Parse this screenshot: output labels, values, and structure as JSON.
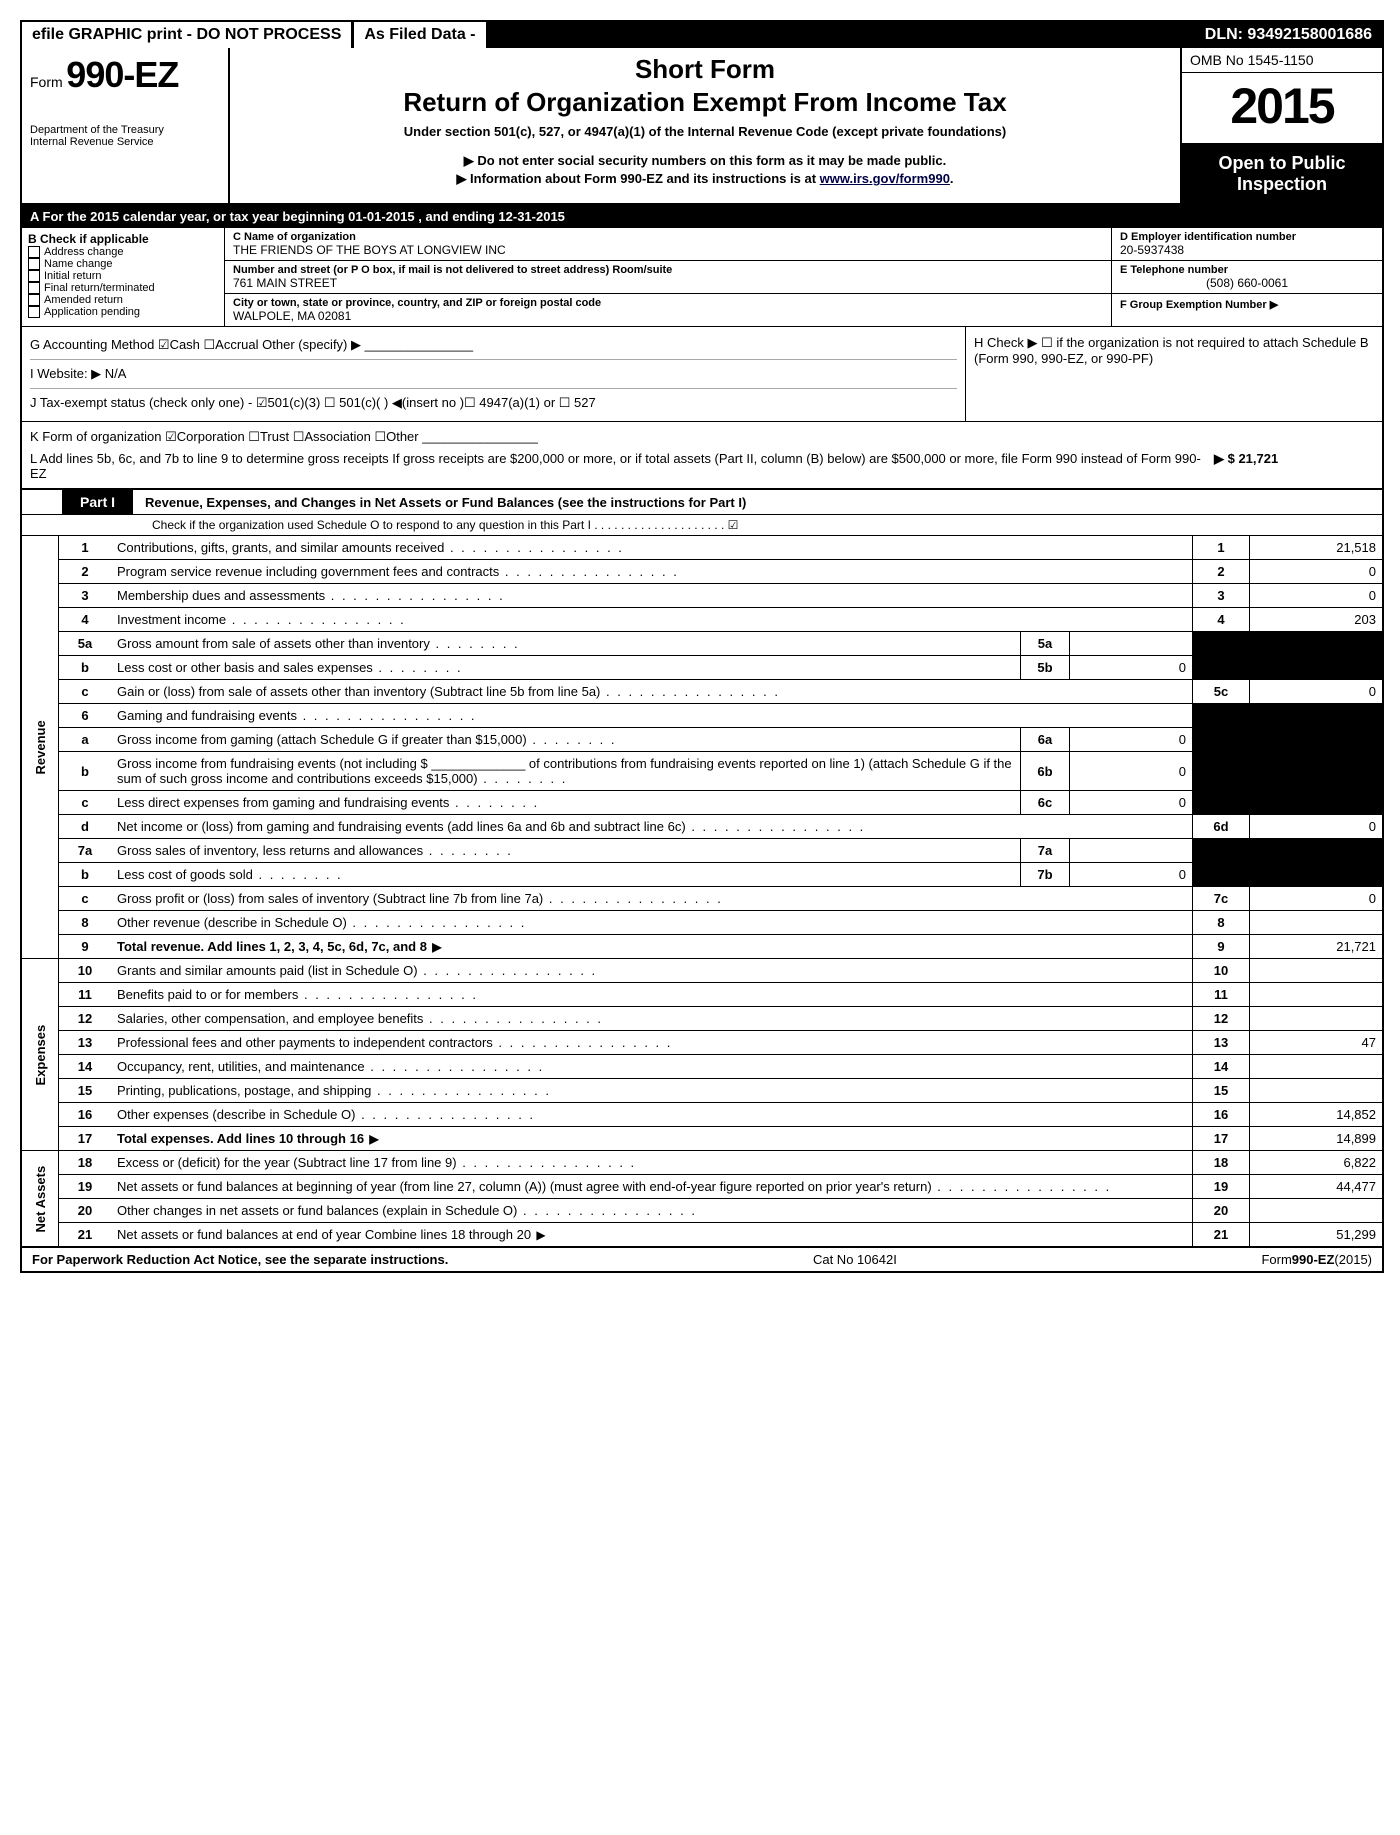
{
  "topbar": {
    "left": "efile GRAPHIC print - DO NOT PROCESS",
    "mid": "As Filed Data -",
    "right": "DLN: 93492158001686"
  },
  "header": {
    "form_prefix": "Form",
    "form_number": "990-EZ",
    "dept1": "Department of the Treasury",
    "dept2": "Internal Revenue Service",
    "short_form": "Short Form",
    "main_title": "Return of Organization Exempt From Income Tax",
    "subtitle": "Under section 501(c), 527, or 4947(a)(1) of the Internal Revenue Code (except private foundations)",
    "inst1": "▶ Do not enter social security numbers on this form as it may be made public.",
    "inst2_pre": "▶ Information about Form 990-EZ and its instructions is at ",
    "inst2_link": "www.irs.gov/form990",
    "omb": "OMB No 1545-1150",
    "year": "2015",
    "open1": "Open to Public",
    "open2": "Inspection"
  },
  "sectionA": "A  For the 2015 calendar year, or tax year beginning 01-01-2015              , and ending 12-31-2015",
  "sectionB": {
    "title": "B  Check if applicable",
    "items": [
      "Address change",
      "Name change",
      "Initial return",
      "Final return/terminated",
      "Amended return",
      "Application pending"
    ]
  },
  "sectionC": {
    "name_label": "C Name of organization",
    "name": "THE FRIENDS OF THE BOYS AT LONGVIEW INC",
    "street_label": "Number and street (or P  O  box, if mail is not delivered to street address) Room/suite",
    "street": "761 MAIN STREET",
    "city_label": "City or town, state or province, country, and ZIP or foreign postal code",
    "city": "WALPOLE, MA  02081"
  },
  "sectionD": {
    "label": "D Employer identification number",
    "value": "20-5937438"
  },
  "sectionE": {
    "label": "E Telephone number",
    "value": "(508) 660-0061"
  },
  "sectionF": {
    "label": "F Group Exemption Number  ▶",
    "value": ""
  },
  "lineG": "G Accounting Method   ☑Cash  ☐Accrual   Other (specify) ▶ _______________",
  "lineI": "I Website: ▶  N/A",
  "lineJ": "J Tax-exempt status (check only one) - ☑501(c)(3)   ☐ 501(c)( )  ◀(insert no )☐ 4947(a)(1) or ☐ 527",
  "lineH": "H   Check ▶ ☐ if the organization is not required to attach Schedule B (Form 990, 990-EZ, or 990-PF)",
  "lineK": "K Form of organization   ☑Corporation  ☐Trust  ☐Association  ☐Other ________________",
  "lineL": "L Add lines 5b, 6c, and 7b to line 9 to determine gross receipts  If gross receipts are $200,000 or more, or if total assets (Part II, column (B) below) are $500,000 or more, file Form 990 instead of Form 990-EZ",
  "lineL_val": "▶ $ 21,721",
  "partI": {
    "label": "Part I",
    "title": "Revenue, Expenses, and Changes in Net Assets or Fund Balances (see the instructions for Part I)",
    "sub": "Check if the organization used Schedule O to respond to any question in this Part I  . . . . . . . . . . . . . . . . . . . .   ☑"
  },
  "rows": [
    {
      "n": "1",
      "d": "Contributions, gifts, grants, and similar amounts received",
      "rn": "1",
      "rv": "21,518"
    },
    {
      "n": "2",
      "d": "Program service revenue including government fees and contracts",
      "rn": "2",
      "rv": "0"
    },
    {
      "n": "3",
      "d": "Membership dues and assessments",
      "rn": "3",
      "rv": "0"
    },
    {
      "n": "4",
      "d": "Investment income",
      "rn": "4",
      "rv": "203"
    },
    {
      "n": "5a",
      "d": "Gross amount from sale of assets other than inventory",
      "in": "5a",
      "iv": ""
    },
    {
      "n": "b",
      "d": "Less  cost or other basis and sales expenses",
      "in": "5b",
      "iv": "0"
    },
    {
      "n": "c",
      "d": "Gain or (loss) from sale of assets other than inventory (Subtract line 5b from line 5a)",
      "rn": "5c",
      "rv": "0"
    },
    {
      "n": "6",
      "d": "Gaming and fundraising events",
      "rn": "",
      "rv": "",
      "grey": true
    },
    {
      "n": "a",
      "d": "Gross income from gaming (attach Schedule G if greater than $15,000)",
      "in": "6a",
      "iv": "0"
    },
    {
      "n": "b",
      "d": "Gross income from fundraising events (not including $ _____________ of contributions from fundraising events reported on line 1) (attach Schedule G if the sum of such gross income and contributions exceeds $15,000)",
      "in": "6b",
      "iv": "0"
    },
    {
      "n": "c",
      "d": "Less  direct expenses from gaming and fundraising events",
      "in": "6c",
      "iv": "0"
    },
    {
      "n": "d",
      "d": "Net income or (loss) from gaming and fundraising events (add lines 6a and 6b and subtract line 6c)",
      "rn": "6d",
      "rv": "0"
    },
    {
      "n": "7a",
      "d": "Gross sales of inventory, less returns and allowances",
      "in": "7a",
      "iv": ""
    },
    {
      "n": "b",
      "d": "Less  cost of goods sold",
      "in": "7b",
      "iv": "0"
    },
    {
      "n": "c",
      "d": "Gross profit or (loss) from sales of inventory (Subtract line 7b from line 7a)",
      "rn": "7c",
      "rv": "0"
    },
    {
      "n": "8",
      "d": "Other revenue (describe in Schedule O)",
      "rn": "8",
      "rv": ""
    },
    {
      "n": "9",
      "d": "Total revenue. Add lines 1, 2, 3, 4, 5c, 6d, 7c, and 8",
      "rn": "9",
      "rv": "21,721",
      "bold": true,
      "arrow": true
    }
  ],
  "exp_rows": [
    {
      "n": "10",
      "d": "Grants and similar amounts paid (list in Schedule O)",
      "rn": "10",
      "rv": ""
    },
    {
      "n": "11",
      "d": "Benefits paid to or for members",
      "rn": "11",
      "rv": ""
    },
    {
      "n": "12",
      "d": "Salaries, other compensation, and employee benefits",
      "rn": "12",
      "rv": ""
    },
    {
      "n": "13",
      "d": "Professional fees and other payments to independent contractors",
      "rn": "13",
      "rv": "47"
    },
    {
      "n": "14",
      "d": "Occupancy, rent, utilities, and maintenance",
      "rn": "14",
      "rv": ""
    },
    {
      "n": "15",
      "d": "Printing, publications, postage, and shipping",
      "rn": "15",
      "rv": ""
    },
    {
      "n": "16",
      "d": "Other expenses (describe in Schedule O)",
      "rn": "16",
      "rv": "14,852"
    },
    {
      "n": "17",
      "d": "Total expenses. Add lines 10 through 16",
      "rn": "17",
      "rv": "14,899",
      "bold": true,
      "arrow": true
    }
  ],
  "net_rows": [
    {
      "n": "18",
      "d": "Excess or (deficit) for the year (Subtract line 17 from line 9)",
      "rn": "18",
      "rv": "6,822"
    },
    {
      "n": "19",
      "d": "Net assets or fund balances at beginning of year (from line 27, column (A)) (must agree with end-of-year figure reported on prior year's return)",
      "rn": "19",
      "rv": "44,477"
    },
    {
      "n": "20",
      "d": "Other changes in net assets or fund balances (explain in Schedule O)",
      "rn": "20",
      "rv": ""
    },
    {
      "n": "21",
      "d": "Net assets or fund balances at end of year  Combine lines 18 through 20",
      "rn": "21",
      "rv": "51,299",
      "arrow": true
    }
  ],
  "footer": {
    "left": "For Paperwork Reduction Act Notice, see the separate instructions.",
    "mid": "Cat No 10642I",
    "right_pre": "Form",
    "right_bold": "990-EZ",
    "right_suf": "(2015)"
  },
  "side_labels": {
    "revenue": "Revenue",
    "expenses": "Expenses",
    "netassets": "Net Assets"
  }
}
